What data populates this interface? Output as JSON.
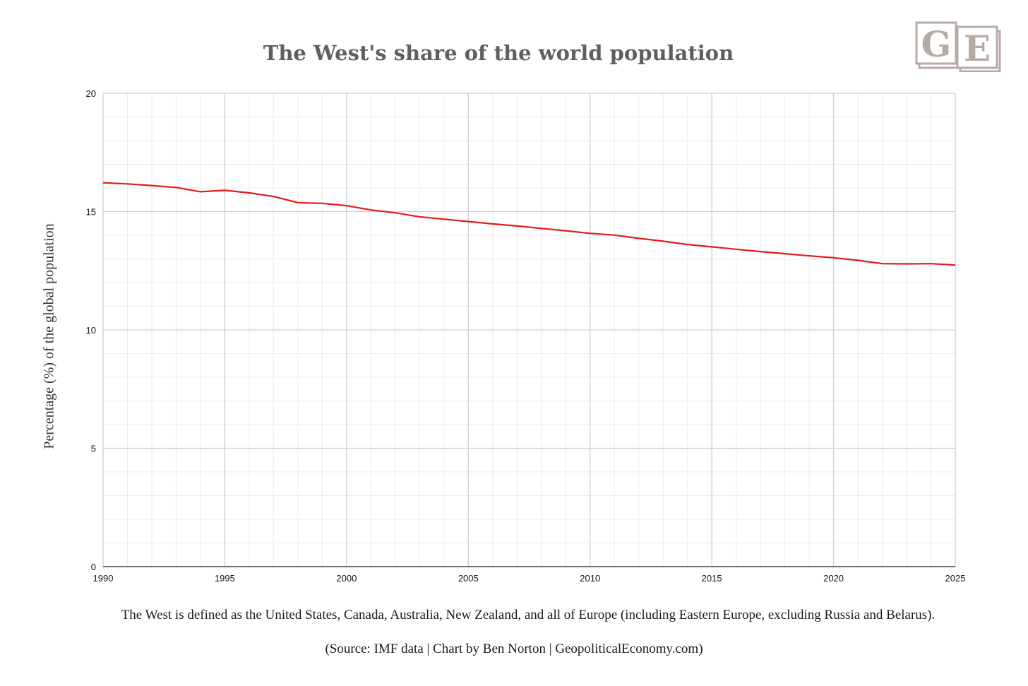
{
  "chart_data": {
    "type": "line",
    "title": "The West's share of the world population",
    "xlabel": "",
    "ylabel": "Percentage (%) of the global population",
    "xlim": [
      1990,
      2025
    ],
    "ylim": [
      0,
      20
    ],
    "x_ticks": [
      1990,
      1995,
      2000,
      2005,
      2010,
      2015,
      2020,
      2025
    ],
    "y_ticks": [
      0,
      5,
      10,
      15,
      20
    ],
    "grid": true,
    "legend": "none",
    "series": [
      {
        "name": "The West",
        "color": "#e41a1a",
        "x": [
          1990,
          1991,
          1992,
          1993,
          1994,
          1995,
          1996,
          1997,
          1998,
          1999,
          2000,
          2001,
          2002,
          2003,
          2004,
          2005,
          2006,
          2007,
          2008,
          2009,
          2010,
          2011,
          2012,
          2013,
          2014,
          2015,
          2016,
          2017,
          2018,
          2019,
          2020,
          2021,
          2022,
          2023,
          2024,
          2025
        ],
        "values": [
          16.22,
          16.17,
          16.1,
          16.02,
          15.84,
          15.9,
          15.79,
          15.64,
          15.38,
          15.35,
          15.25,
          15.07,
          14.95,
          14.78,
          14.68,
          14.58,
          14.48,
          14.39,
          14.29,
          14.19,
          14.08,
          14.01,
          13.87,
          13.75,
          13.61,
          13.51,
          13.41,
          13.31,
          13.22,
          13.13,
          13.05,
          12.94,
          12.8,
          12.79,
          12.8,
          12.74
        ]
      }
    ]
  },
  "logo": {
    "letters": [
      "G",
      "E"
    ],
    "color": "#b7aaa6"
  },
  "footer": {
    "definition": "The West is defined as the United States, Canada, Australia, New Zealand, and all of Europe (including Eastern Europe, excluding Russia and Belarus).",
    "source": "(Source: IMF data | Chart by Ben Norton | GeopoliticalEconomy.com)"
  }
}
